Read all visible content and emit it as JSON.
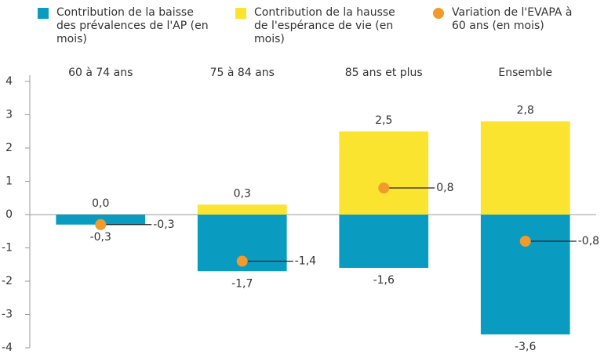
{
  "chart_data": {
    "type": "bar",
    "stacked": true,
    "categories": [
      "60 à 74 ans",
      "75 à 84 ans",
      "85 ans et plus",
      "Ensemble"
    ],
    "series": [
      {
        "name": "Contribution de la baisse des prévalences de l'AP (en mois)",
        "color": "#0a9bc1",
        "values": [
          -0.3,
          -1.7,
          -1.6,
          -3.6
        ],
        "value_labels": [
          "-0,3",
          "-1,7",
          "-1,6",
          "-3,6"
        ]
      },
      {
        "name": "Contribution de la hausse de l'espérance de vie (en mois)",
        "color": "#fbe42f",
        "values": [
          0.0,
          0.3,
          2.5,
          2.8
        ],
        "value_labels": [
          "0,0",
          "0,3",
          "2,5",
          "2,8"
        ]
      },
      {
        "name": "Variation de l'EVAPA à 60 ans (en mois)",
        "color": "#f39a2c",
        "type": "scatter",
        "values": [
          -0.3,
          -1.4,
          0.8,
          -0.8
        ],
        "value_labels": [
          "-0,3",
          "-1,4",
          "0,8",
          "-0,8"
        ]
      }
    ],
    "ylim": [
      -4,
      4
    ],
    "yticks": [
      -4,
      -3,
      -2,
      -1,
      0,
      1,
      2,
      3,
      4
    ],
    "grid": false
  }
}
